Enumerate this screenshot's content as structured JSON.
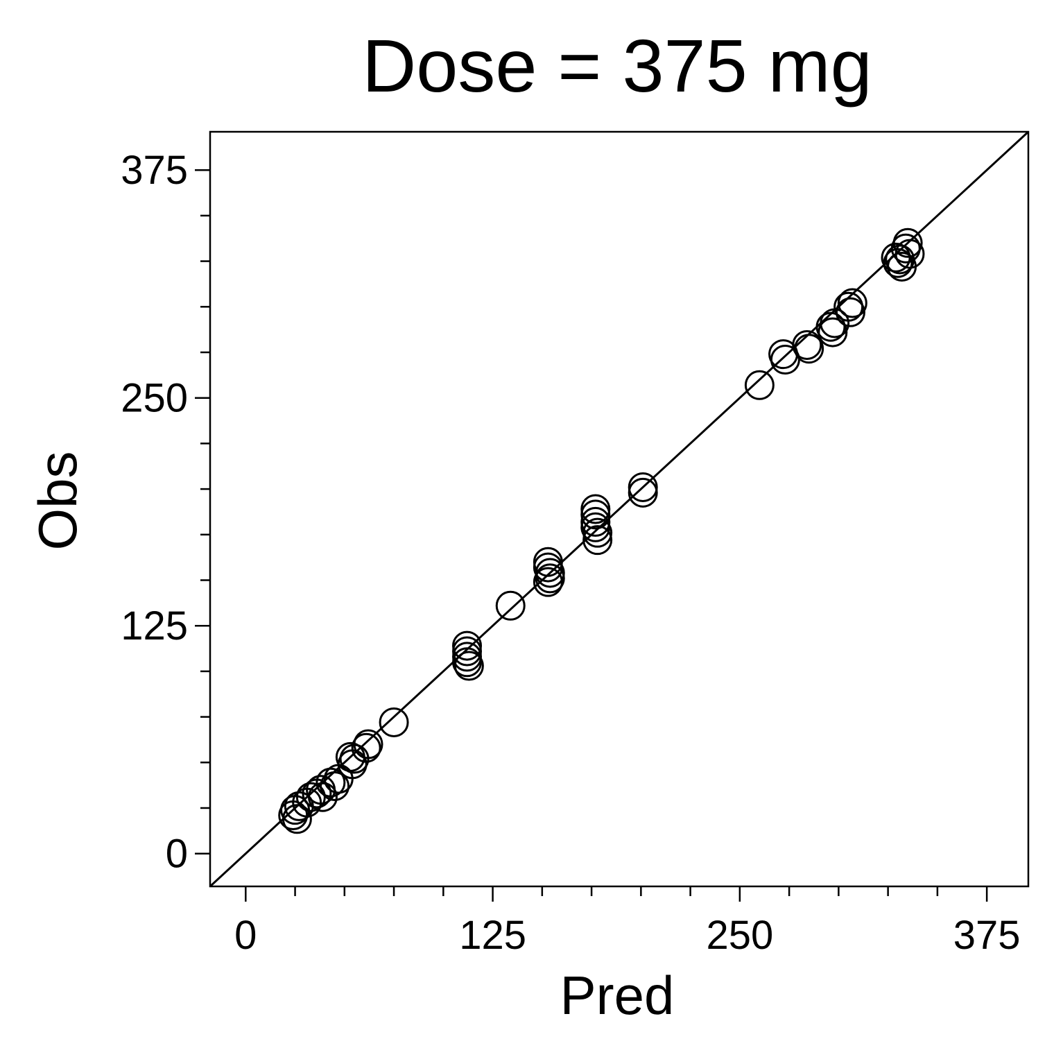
{
  "chart_data": {
    "type": "scatter",
    "title": "Dose = 375 mg",
    "xlabel": "Pred",
    "ylabel": "Obs",
    "xlim": [
      -18,
      396
    ],
    "ylim": [
      -18,
      396
    ],
    "xticks": [
      0,
      125,
      250,
      375
    ],
    "yticks": [
      0,
      125,
      250,
      375
    ],
    "xtick_labels": [
      "0",
      "125",
      "250",
      "375"
    ],
    "ytick_labels": [
      "0",
      "125",
      "250",
      "375"
    ],
    "minor_tick_step": 25,
    "identity_line": true,
    "marker": "open-circle",
    "grid": false,
    "series": [
      {
        "points": [
          [
            24,
            21
          ],
          [
            25,
            24
          ],
          [
            26,
            19
          ],
          [
            27,
            26
          ],
          [
            31,
            28
          ],
          [
            33,
            31
          ],
          [
            36,
            33
          ],
          [
            38,
            35
          ],
          [
            39,
            31
          ],
          [
            43,
            39
          ],
          [
            45,
            37
          ],
          [
            47,
            41
          ],
          [
            53,
            53
          ],
          [
            54,
            49
          ],
          [
            55,
            52
          ],
          [
            61,
            58
          ],
          [
            62,
            60
          ],
          [
            75,
            72
          ],
          [
            112,
            114
          ],
          [
            112,
            111
          ],
          [
            112,
            108
          ],
          [
            112,
            105
          ],
          [
            113,
            103
          ],
          [
            134,
            136
          ],
          [
            153,
            160
          ],
          [
            153,
            157
          ],
          [
            154,
            154
          ],
          [
            154,
            151
          ],
          [
            153,
            149
          ],
          [
            177,
            189
          ],
          [
            177,
            186
          ],
          [
            177,
            182
          ],
          [
            177,
            179
          ],
          [
            178,
            176
          ],
          [
            178,
            172
          ],
          [
            201,
            201
          ],
          [
            201,
            198
          ],
          [
            260,
            257
          ],
          [
            272,
            274
          ],
          [
            273,
            271
          ],
          [
            284,
            279
          ],
          [
            285,
            277
          ],
          [
            296,
            289
          ],
          [
            297,
            286
          ],
          [
            298,
            291
          ],
          [
            305,
            300
          ],
          [
            306,
            297
          ],
          [
            307,
            302
          ],
          [
            329,
            327
          ],
          [
            330,
            324
          ],
          [
            331,
            326
          ],
          [
            332,
            322
          ],
          [
            334,
            332
          ],
          [
            335,
            335
          ],
          [
            336,
            329
          ]
        ]
      }
    ]
  }
}
